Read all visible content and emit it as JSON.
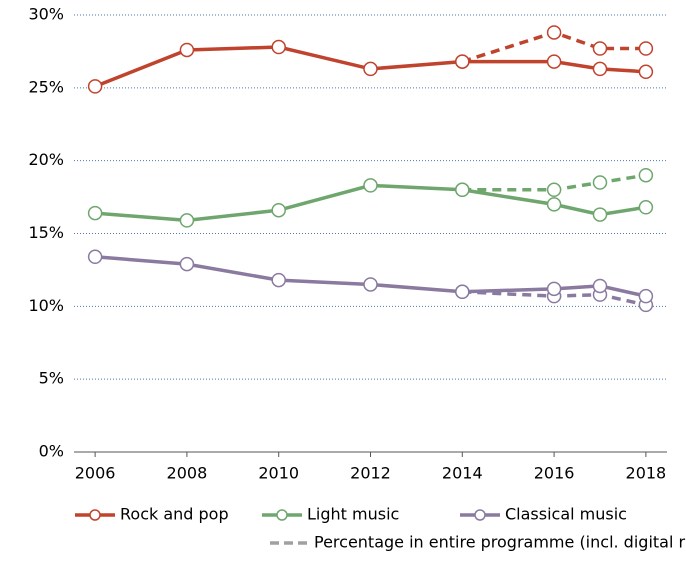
{
  "chart_data": {
    "type": "line",
    "x": [
      2006,
      2008,
      2010,
      2012,
      2014,
      2016,
      2017,
      2018
    ],
    "xlim": [
      2005.54,
      2018.46
    ],
    "xticks": [
      2006,
      2008,
      2010,
      2012,
      2014,
      2016,
      2018
    ],
    "ylim": [
      0,
      30
    ],
    "yticks": [
      {
        "value": 0,
        "label": "0%"
      },
      {
        "value": 5,
        "label": "5%"
      },
      {
        "value": 10,
        "label": "10%"
      },
      {
        "value": 15,
        "label": "15%"
      },
      {
        "value": 20,
        "label": "20%"
      },
      {
        "value": 25,
        "label": "25%"
      },
      {
        "value": 30,
        "label": "30%"
      }
    ],
    "grid": true,
    "series": [
      {
        "name": "Rock and pop",
        "color": "#c0432e",
        "values": [
          25.1,
          27.6,
          27.8,
          26.3,
          26.8,
          26.8,
          26.3,
          26.1
        ],
        "digital_values": [
          null,
          null,
          null,
          null,
          26.8,
          28.8,
          27.7,
          27.7
        ]
      },
      {
        "name": "Light music",
        "color": "#6ea66e",
        "values": [
          16.4,
          15.9,
          16.6,
          18.3,
          18.0,
          17.0,
          16.3,
          16.8
        ],
        "digital_values": [
          null,
          null,
          null,
          null,
          18.0,
          18.0,
          18.5,
          19.0
        ]
      },
      {
        "name": "Classical music",
        "color": "#8a7aa0",
        "values": [
          13.4,
          12.9,
          11.8,
          11.5,
          11.0,
          11.2,
          11.4,
          10.7
        ],
        "digital_values": [
          null,
          null,
          null,
          null,
          11.0,
          10.7,
          10.8,
          10.1
        ]
      }
    ],
    "digital_legend": {
      "name": "Percentage in entire programme (incl. digital radio)",
      "color": "#a0a0a0"
    }
  }
}
